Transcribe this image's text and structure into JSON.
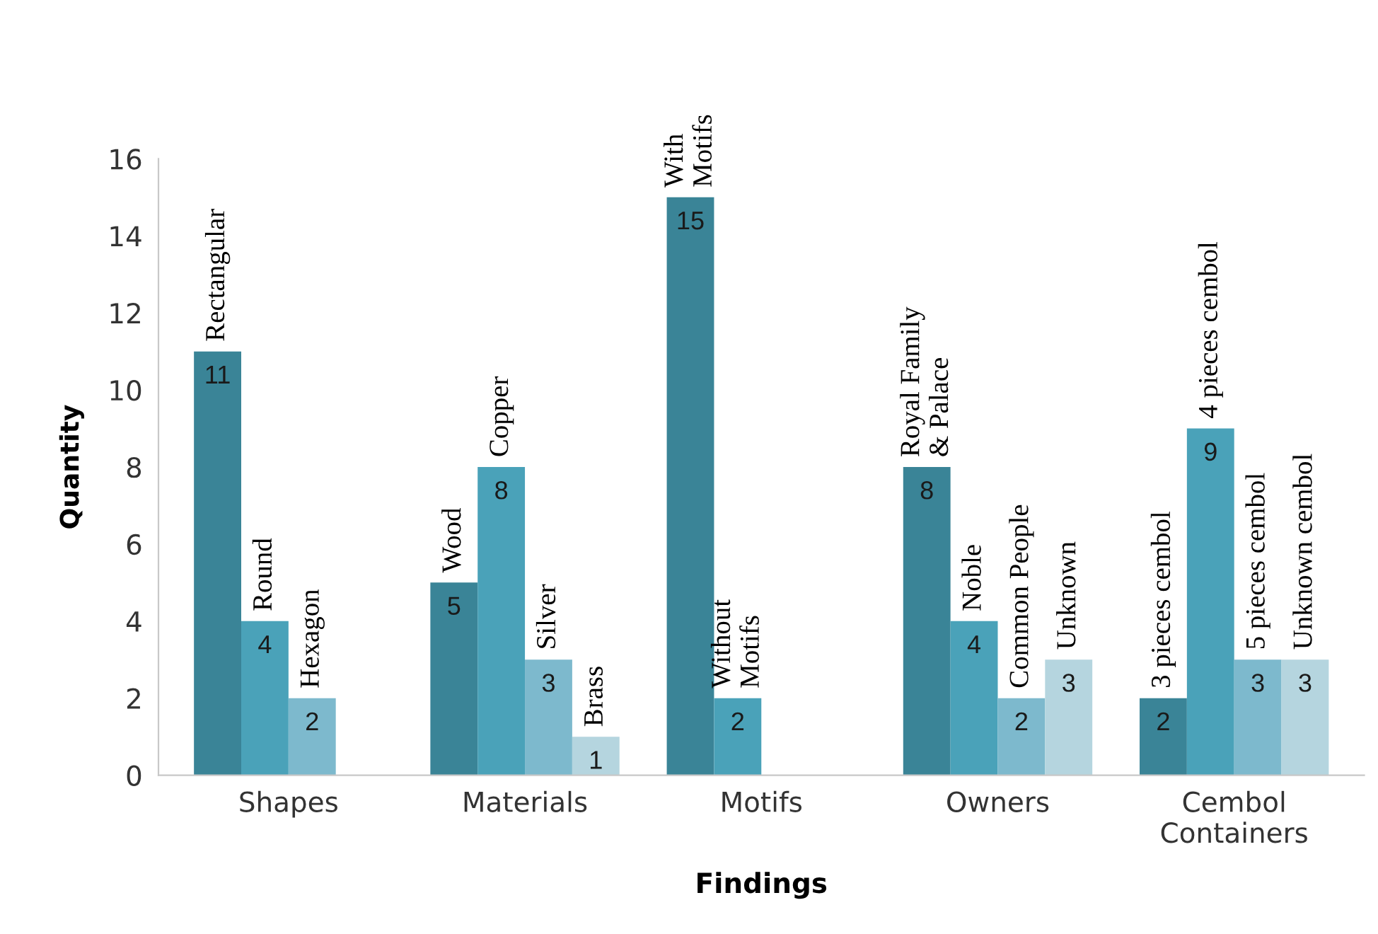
{
  "chart_data": {
    "type": "bar",
    "xlabel": "Findings",
    "ylabel": "Quantity",
    "categories": [
      "Shapes",
      "Materials",
      "Motifs",
      "Owners",
      "Cembol\nContainers"
    ],
    "series": [
      {
        "color": "#3a8497",
        "values": [
          11,
          5,
          15,
          8,
          2
        ]
      },
      {
        "color": "#4aa2b9",
        "values": [
          4,
          8,
          2,
          4,
          9
        ]
      },
      {
        "color": "#7db9cd",
        "values": [
          2,
          3,
          null,
          2,
          3
        ]
      },
      {
        "color": "#b5d5df",
        "values": [
          null,
          1,
          null,
          3,
          3
        ]
      }
    ],
    "ylim": [
      0,
      16
    ],
    "yticks": [
      0,
      2,
      4,
      6,
      8,
      10,
      12,
      14,
      16
    ],
    "grid": false,
    "legend": false,
    "data_labels": true,
    "annotations": [
      "Rectangular",
      "Round",
      "Hexagon",
      "Wood",
      "Copper",
      "Silver",
      "Brass",
      "With\nMotifs",
      "Without\nMotifs",
      "Royal Family\n& Palace",
      "Noble",
      "Common People",
      "Unknown",
      "3 pieces cembol",
      "4 pieces cembol",
      "5 pieces cembol",
      "Unknown cembol"
    ]
  }
}
